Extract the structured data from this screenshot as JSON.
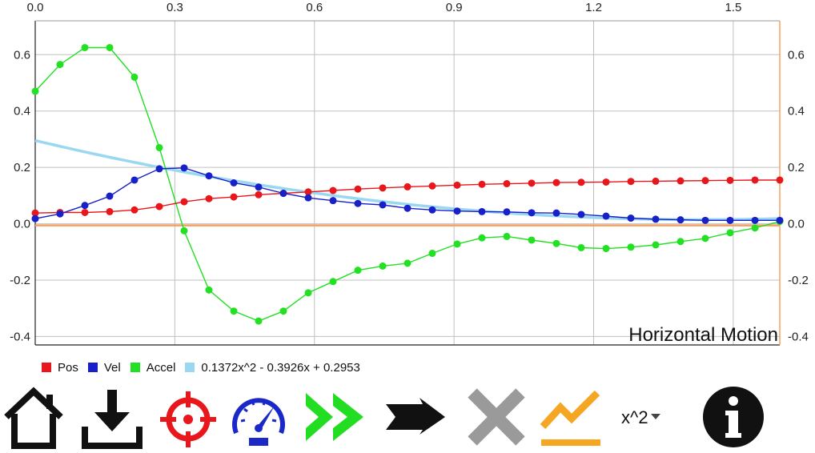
{
  "chart_data": {
    "type": "line",
    "title": "Horizontal Motion",
    "xlim": [
      0.0,
      1.6
    ],
    "ylim": [
      -0.43,
      0.72
    ],
    "x_ticks": [
      "0.0",
      "0.3",
      "0.6",
      "0.9",
      "1.2",
      "1.5"
    ],
    "x_tick_values": [
      0.0,
      0.3,
      0.6,
      0.9,
      1.2,
      1.5
    ],
    "y_ticks_left": [
      "0.6",
      "0.4",
      "0.2",
      "0.0",
      "-0.2",
      "-0.4"
    ],
    "y_ticks_right": [
      "0.6",
      "0.4",
      "0.2",
      "0.0",
      "-0.2",
      "-0.4"
    ],
    "y_tick_values": [
      0.6,
      0.4,
      0.2,
      0.0,
      -0.2,
      -0.4
    ],
    "grid": true,
    "x": [
      0.0,
      0.0533,
      0.1067,
      0.16,
      0.2133,
      0.2667,
      0.32,
      0.3733,
      0.4267,
      0.48,
      0.5333,
      0.5867,
      0.64,
      0.6933,
      0.7467,
      0.8,
      0.8533,
      0.9067,
      0.96,
      1.0133,
      1.0667,
      1.12,
      1.1733,
      1.2267,
      1.28,
      1.3333,
      1.3867,
      1.44,
      1.4933,
      1.5467,
      1.6
    ],
    "series": [
      {
        "name": "Pos",
        "color": "#e8171b",
        "values": [
          0.038,
          0.04,
          0.04,
          0.043,
          0.049,
          0.061,
          0.078,
          0.089,
          0.095,
          0.103,
          0.108,
          0.113,
          0.118,
          0.123,
          0.127,
          0.131,
          0.134,
          0.137,
          0.14,
          0.142,
          0.144,
          0.146,
          0.147,
          0.148,
          0.15,
          0.151,
          0.152,
          0.153,
          0.154,
          0.155,
          0.155
        ]
      },
      {
        "name": "Vel",
        "color": "#1820c8",
        "values": [
          0.018,
          0.035,
          0.065,
          0.098,
          0.155,
          0.195,
          0.198,
          0.17,
          0.145,
          0.13,
          0.108,
          0.092,
          0.082,
          0.072,
          0.067,
          0.055,
          0.049,
          0.045,
          0.043,
          0.042,
          0.039,
          0.038,
          0.033,
          0.027,
          0.02,
          0.016,
          0.014,
          0.012,
          0.012,
          0.012,
          0.012
        ]
      },
      {
        "name": "Accel",
        "color": "#22e022",
        "values": [
          0.47,
          0.565,
          0.625,
          0.625,
          0.52,
          0.27,
          -0.025,
          -0.235,
          -0.31,
          -0.345,
          -0.31,
          -0.245,
          -0.205,
          -0.165,
          -0.15,
          -0.14,
          -0.105,
          -0.072,
          -0.05,
          -0.045,
          -0.058,
          -0.07,
          -0.085,
          -0.088,
          -0.083,
          -0.075,
          -0.063,
          -0.052,
          -0.032,
          -0.015,
          0.008
        ]
      }
    ],
    "fit": {
      "name": "0.1372x^2 - 0.3926x + 0.2953",
      "color": "#9ad8f2",
      "a": 0.1372,
      "b": -0.3926,
      "c": 0.2953
    },
    "legend_position": "bottom-left"
  },
  "toolbar": {
    "fit_option": "x^2",
    "icons": [
      "home-icon",
      "download-icon",
      "crosshair-icon",
      "speedometer-icon",
      "fast-forward-icon",
      "arrow-right-icon",
      "close-icon",
      "trend-line-icon",
      "info-icon"
    ],
    "colors": {
      "home": "#111111",
      "crosshair": "#e8171b",
      "speedometer": "#1b28c8",
      "forward": "#22dd22",
      "close": "#9a9a9a",
      "trend": "#f5a623",
      "axis_accent": "#f5a060"
    }
  }
}
